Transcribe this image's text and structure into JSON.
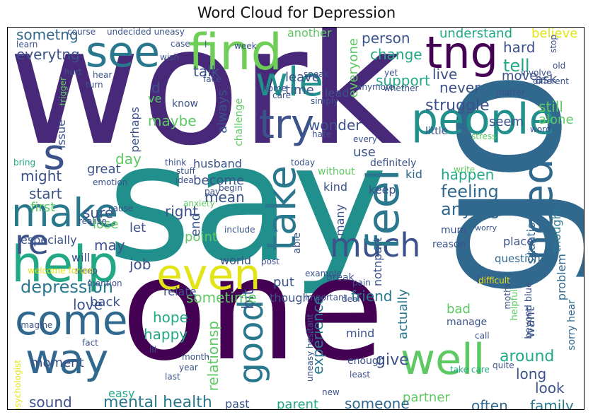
{
  "title": "Word Cloud for Depression",
  "words": [
    {
      "text": "work",
      "color": "#482878"
    },
    {
      "text": "say",
      "color": "#21908d"
    },
    {
      "text": "one",
      "color": "#440154"
    },
    {
      "text": "go",
      "color": "#31688e"
    },
    {
      "text": "people",
      "color": "#21908d"
    },
    {
      "text": "find",
      "color": "#6ece58"
    },
    {
      "text": "tng",
      "color": "#440154"
    },
    {
      "text": "see",
      "color": "#2a788e"
    },
    {
      "text": "help",
      "color": "#22a884"
    },
    {
      "text": "make",
      "color": "#2a788e"
    },
    {
      "text": "come",
      "color": "#31688e"
    },
    {
      "text": "way",
      "color": "#31688e"
    },
    {
      "text": "even",
      "color": "#e3e418"
    },
    {
      "text": "well",
      "color": "#5ec962"
    },
    {
      "text": "much",
      "color": "#3b528b"
    },
    {
      "text": "need",
      "color": "#31688e"
    },
    {
      "text": "feel",
      "color": "#2a788e"
    },
    {
      "text": "take",
      "color": "#2a788e"
    },
    {
      "text": "try",
      "color": "#3b528b"
    },
    {
      "text": "wle",
      "color": "#21918c"
    },
    {
      "text": "good",
      "color": "#2a788e"
    },
    {
      "text": "s",
      "color": "#3b528b"
    },
    {
      "text": "re",
      "color": "#3b528b"
    },
    {
      "text": "depression",
      "color": "#2a788e"
    },
    {
      "text": "mental health",
      "color": "#2a788e"
    },
    {
      "text": "feeling",
      "color": "#31688e"
    },
    {
      "text": "anytng",
      "color": "#31688e"
    },
    {
      "text": "sometng",
      "color": "#31688e"
    },
    {
      "text": "everytng",
      "color": "#3b528b"
    },
    {
      "text": "person",
      "color": "#3b528b"
    },
    {
      "text": "understand",
      "color": "#22a884"
    },
    {
      "text": "believe",
      "color": "#e3e418"
    },
    {
      "text": "hard",
      "color": "#3b528b"
    },
    {
      "text": "tell",
      "color": "#22a884"
    },
    {
      "text": "change",
      "color": "#22a884"
    },
    {
      "text": "live",
      "color": "#3b528b"
    },
    {
      "text": "move",
      "color": "#3b528b"
    },
    {
      "text": "ask",
      "color": "#3b528b"
    },
    {
      "text": "support",
      "color": "#22a884"
    },
    {
      "text": "never",
      "color": "#3b528b"
    },
    {
      "text": "struggle",
      "color": "#3b528b"
    },
    {
      "text": "still",
      "color": "#5ec962"
    },
    {
      "text": "alone",
      "color": "#5ec962"
    },
    {
      "text": "seem",
      "color": "#3b528b"
    },
    {
      "text": "happen",
      "color": "#22a884"
    },
    {
      "text": "situation",
      "color": "#31688e"
    },
    {
      "text": "thought",
      "color": "#2a788e"
    },
    {
      "text": "problem",
      "color": "#31688e"
    },
    {
      "text": "sorry hear",
      "color": "#31688e"
    },
    {
      "text": "talk",
      "color": "#3b528b"
    },
    {
      "text": "leave",
      "color": "#3b528b"
    },
    {
      "text": "time",
      "color": "#3b528b"
    },
    {
      "text": "another",
      "color": "#5ec962"
    },
    {
      "text": "everyone",
      "color": "#5ec962"
    },
    {
      "text": "lead",
      "color": "#3b528b"
    },
    {
      "text": "wonder",
      "color": "#3b528b"
    },
    {
      "text": "use",
      "color": "#3b528b"
    },
    {
      "text": "kid",
      "color": "#31688e"
    },
    {
      "text": "keep",
      "color": "#3b528b"
    },
    {
      "text": "kind",
      "color": "#3b528b"
    },
    {
      "text": "friend",
      "color": "#2a788e"
    },
    {
      "text": "lot",
      "color": "#3b528b"
    },
    {
      "text": "question",
      "color": "#31688e"
    },
    {
      "text": "place",
      "color": "#3b528b"
    },
    {
      "text": "reason",
      "color": "#3b528b"
    },
    {
      "text": "mum",
      "color": "#3b528b"
    },
    {
      "text": "actually",
      "color": "#2a788e"
    },
    {
      "text": "want",
      "color": "#3b528b"
    },
    {
      "text": "bad",
      "color": "#5ec962"
    },
    {
      "text": "manage",
      "color": "#3b528b"
    },
    {
      "text": "experience",
      "color": "#2a788e"
    },
    {
      "text": "give",
      "color": "#3b528b"
    },
    {
      "text": "mind",
      "color": "#3b528b"
    },
    {
      "text": "around",
      "color": "#22a884"
    },
    {
      "text": "long",
      "color": "#3b528b"
    },
    {
      "text": "look",
      "color": "#3b528b"
    },
    {
      "text": "family",
      "color": "#2a788e"
    },
    {
      "text": "often",
      "color": "#31688e"
    },
    {
      "text": "partner",
      "color": "#5ec962"
    },
    {
      "text": "someone",
      "color": "#31688e"
    },
    {
      "text": "parent",
      "color": "#22a884"
    },
    {
      "text": "past",
      "color": "#3b528b"
    },
    {
      "text": "relationsp",
      "color": "#5ec962"
    },
    {
      "text": "bit",
      "color": "#3b528b"
    },
    {
      "text": "hope",
      "color": "#22a884"
    },
    {
      "text": "happy",
      "color": "#22a884"
    },
    {
      "text": "back",
      "color": "#3b528b"
    },
    {
      "text": "love",
      "color": "#3b528b"
    },
    {
      "text": "moment",
      "color": "#3b528b"
    },
    {
      "text": "sound",
      "color": "#3b528b"
    },
    {
      "text": "medication",
      "color": "#31688e"
    },
    {
      "text": "easy",
      "color": "#22a884"
    },
    {
      "text": "put",
      "color": "#3b528b"
    },
    {
      "text": "though",
      "color": "#3b528b"
    },
    {
      "text": "sometime",
      "color": "#5ec962"
    },
    {
      "text": "relate",
      "color": "#3b528b"
    },
    {
      "text": "world",
      "color": "#3b528b"
    },
    {
      "text": "point",
      "color": "#5ec962"
    },
    {
      "text": "job",
      "color": "#3b528b"
    },
    {
      "text": "let",
      "color": "#3b528b"
    },
    {
      "text": "end",
      "color": "#3b528b"
    },
    {
      "text": "right",
      "color": "#3b528b"
    },
    {
      "text": "mean",
      "color": "#3b528b"
    },
    {
      "text": "become",
      "color": "#3b528b"
    },
    {
      "text": "husband",
      "color": "#3b528b"
    },
    {
      "text": "great",
      "color": "#3b528b"
    },
    {
      "text": "sure",
      "color": "#3b528b"
    },
    {
      "text": "lose",
      "color": "#5ec962"
    },
    {
      "text": "day",
      "color": "#5ec962"
    },
    {
      "text": "might",
      "color": "#3b528b"
    },
    {
      "text": "start",
      "color": "#3b528b"
    },
    {
      "text": "first",
      "color": "#5ec962"
    },
    {
      "text": "may",
      "color": "#3b528b"
    },
    {
      "text": "especially",
      "color": "#3b528b"
    },
    {
      "text": "will",
      "color": "#3b528b"
    },
    {
      "text": "issue",
      "color": "#3b528b"
    },
    {
      "text": "perhaps",
      "color": "#3b528b"
    },
    {
      "text": "maybe",
      "color": "#5ec962"
    },
    {
      "text": "always",
      "color": "#3b528b"
    },
    {
      "text": "challenge",
      "color": "#5ec962"
    },
    {
      "text": "d",
      "color": "#3b528b"
    },
    {
      "text": "ve",
      "color": "#5ec962"
    },
    {
      "text": "know",
      "color": "#3b528b"
    },
    {
      "text": "notnpart",
      "color": "#3b528b"
    },
    {
      "text": "many",
      "color": "#3b528b"
    },
    {
      "text": "without",
      "color": "#5ec962"
    },
    {
      "text": "definitely",
      "color": "#3b528b"
    },
    {
      "text": "little",
      "color": "#3b528b"
    },
    {
      "text": "stress",
      "color": "#5ec962"
    },
    {
      "text": "write",
      "color": "#5ec962"
    },
    {
      "text": "worry",
      "color": "#3b528b"
    },
    {
      "text": "beyond blue",
      "color": "#3b528b"
    },
    {
      "text": "helpful",
      "color": "#5ec962"
    },
    {
      "text": "mother",
      "color": "#3b528b"
    },
    {
      "text": "call",
      "color": "#3b528b"
    },
    {
      "text": "difficult",
      "color": "#e3e418"
    },
    {
      "text": "take care",
      "color": "#22a884"
    },
    {
      "text": "quite",
      "color": "#3b528b"
    },
    {
      "text": "enough",
      "color": "#3b528b"
    },
    {
      "text": "least",
      "color": "#3b528b"
    },
    {
      "text": "new",
      "color": "#3b528b"
    },
    {
      "text": "pain",
      "color": "#3b528b"
    },
    {
      "text": "deal",
      "color": "#3b528b"
    },
    {
      "text": "break",
      "color": "#3b528b"
    },
    {
      "text": "important",
      "color": "#3b528b"
    },
    {
      "text": "able",
      "color": "#3b528b"
    },
    {
      "text": "example",
      "color": "#3b528b"
    },
    {
      "text": "post",
      "color": "#3b528b"
    },
    {
      "text": "uneasy hesitant",
      "color": "#3b528b"
    },
    {
      "text": "sleep",
      "color": "#3b528b"
    },
    {
      "text": "mention",
      "color": "#3b528b"
    },
    {
      "text": "ill",
      "color": "#3b528b"
    },
    {
      "text": "imagine",
      "color": "#3b528b"
    },
    {
      "text": "fact",
      "color": "#3b528b"
    },
    {
      "text": "month",
      "color": "#3b528b"
    },
    {
      "text": "year",
      "color": "#3b528b"
    },
    {
      "text": "last",
      "color": "#3b528b"
    },
    {
      "text": "psychologist",
      "color": "#e3e418"
    },
    {
      "text": "welcome forum",
      "color": "#e3e418"
    },
    {
      "text": "realise",
      "color": "#3b528b"
    },
    {
      "text": "cause",
      "color": "#3b528b"
    },
    {
      "text": "anxiety",
      "color": "#5ec962"
    },
    {
      "text": "include",
      "color": "#3b528b"
    },
    {
      "text": "emotion",
      "color": "#3b528b"
    },
    {
      "text": "idea",
      "color": "#3b528b"
    },
    {
      "text": "pay",
      "color": "#3b528b"
    },
    {
      "text": "begin",
      "color": "#3b528b"
    },
    {
      "text": "stuff",
      "color": "#3b528b"
    },
    {
      "text": "think",
      "color": "#3b528b"
    },
    {
      "text": "today",
      "color": "#3b528b"
    },
    {
      "text": "bring",
      "color": "#22a884"
    },
    {
      "text": "hate",
      "color": "#3b528b"
    },
    {
      "text": "every",
      "color": "#3b528b"
    },
    {
      "text": "care",
      "color": "#3b528b"
    },
    {
      "text": "home",
      "color": "#3b528b"
    },
    {
      "text": "word",
      "color": "#3b528b"
    },
    {
      "text": "different",
      "color": "#3b528b"
    },
    {
      "text": "matter",
      "color": "#3b528b"
    },
    {
      "text": "involve",
      "color": "#3b528b"
    },
    {
      "text": "old",
      "color": "#3b528b"
    },
    {
      "text": "stop",
      "color": "#3b528b"
    },
    {
      "text": "yet",
      "color": "#3b528b"
    },
    {
      "text": "anymore",
      "color": "#3b528b"
    },
    {
      "text": "whether",
      "color": "#3b528b"
    },
    {
      "text": "simply",
      "color": "#3b528b"
    },
    {
      "text": "speak",
      "color": "#3b528b"
    },
    {
      "text": "face",
      "color": "#3b528b"
    },
    {
      "text": "hear",
      "color": "#3b528b"
    },
    {
      "text": "turn",
      "color": "#3b528b"
    },
    {
      "text": "hurt",
      "color": "#3b528b"
    },
    {
      "text": "trigger",
      "color": "#5ec962"
    },
    {
      "text": "wish",
      "color": "#3b528b"
    },
    {
      "text": "case",
      "color": "#3b528b"
    },
    {
      "text": "learn",
      "color": "#3b528b"
    },
    {
      "text": "course",
      "color": "#3b528b"
    },
    {
      "text": "undecided uneasy",
      "color": "#3b528b"
    },
    {
      "text": "week",
      "color": "#3b528b"
    },
    {
      "text": "l",
      "color": "#3b528b"
    }
  ]
}
